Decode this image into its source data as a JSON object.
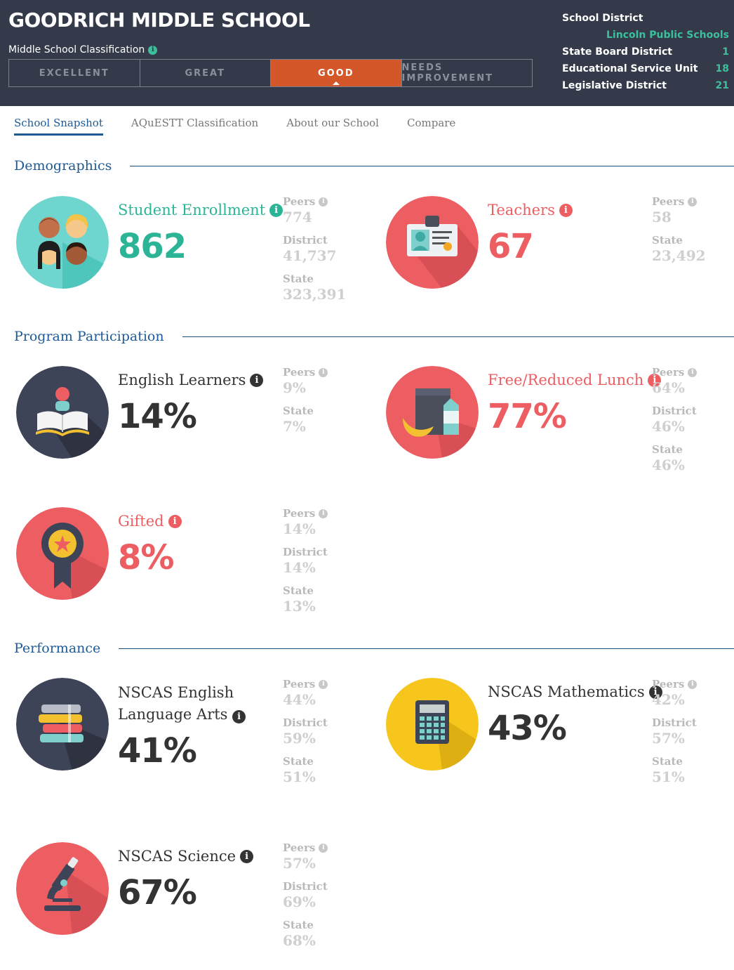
{
  "header": {
    "school_name": "GOODRICH MIDDLE SCHOOL",
    "classification_label": "Middle School Classification",
    "classification_levels": [
      "EXCELLENT",
      "GREAT",
      "GOOD",
      "NEEDS IMPROVEMENT"
    ],
    "active_level": "GOOD",
    "district_info": {
      "school_district_label": "School District",
      "school_district_value": "Lincoln Public Schools",
      "state_board_label": "State Board District",
      "state_board_value": "1",
      "esu_label": "Educational Service Unit",
      "esu_value": "18",
      "legislative_label": "Legislative District",
      "legislative_value": "21"
    }
  },
  "tabs": [
    "School Snapshot",
    "AQuESTT Classification",
    "About our School",
    "Compare"
  ],
  "sections": {
    "demographics": "Demographics",
    "program": "Program Participation",
    "performance": "Performance"
  },
  "info_glyph": "i",
  "labels": {
    "peers": "Peers",
    "district": "District",
    "state": "State"
  },
  "stats": {
    "enrollment": {
      "label": "Student Enrollment",
      "value": "862",
      "peers": "774",
      "district": "41,737",
      "state": "323,391",
      "icon": "students-icon",
      "color": "#2bb596"
    },
    "teachers": {
      "label": "Teachers",
      "value": "67",
      "peers": "58",
      "state": "23,492",
      "icon": "id-badge-icon",
      "color": "#ed5e63"
    },
    "english_learners": {
      "label": "English Learners",
      "value": "14%",
      "peers": "9%",
      "state": "7%",
      "icon": "reader-book-icon",
      "color": "#333333"
    },
    "lunch": {
      "label": "Free/Reduced Lunch",
      "value": "77%",
      "peers": "64%",
      "district": "46%",
      "state": "46%",
      "icon": "lunch-bag-icon",
      "color": "#ed5e63"
    },
    "gifted": {
      "label": "Gifted",
      "value": "8%",
      "peers": "14%",
      "district": "14%",
      "state": "13%",
      "icon": "award-ribbon-icon",
      "color": "#ed5e63"
    },
    "ela": {
      "label": "NSCAS English Language Arts",
      "value": "41%",
      "peers": "44%",
      "district": "59%",
      "state": "51%",
      "icon": "books-stack-icon",
      "color": "#333333"
    },
    "math": {
      "label": "NSCAS Mathematics",
      "value": "43%",
      "peers": "42%",
      "district": "57%",
      "state": "51%",
      "icon": "calculator-icon",
      "color": "#333333"
    },
    "science": {
      "label": "NSCAS Science",
      "value": "67%",
      "peers": "57%",
      "district": "69%",
      "state": "68%",
      "icon": "microscope-icon",
      "color": "#333333"
    }
  }
}
